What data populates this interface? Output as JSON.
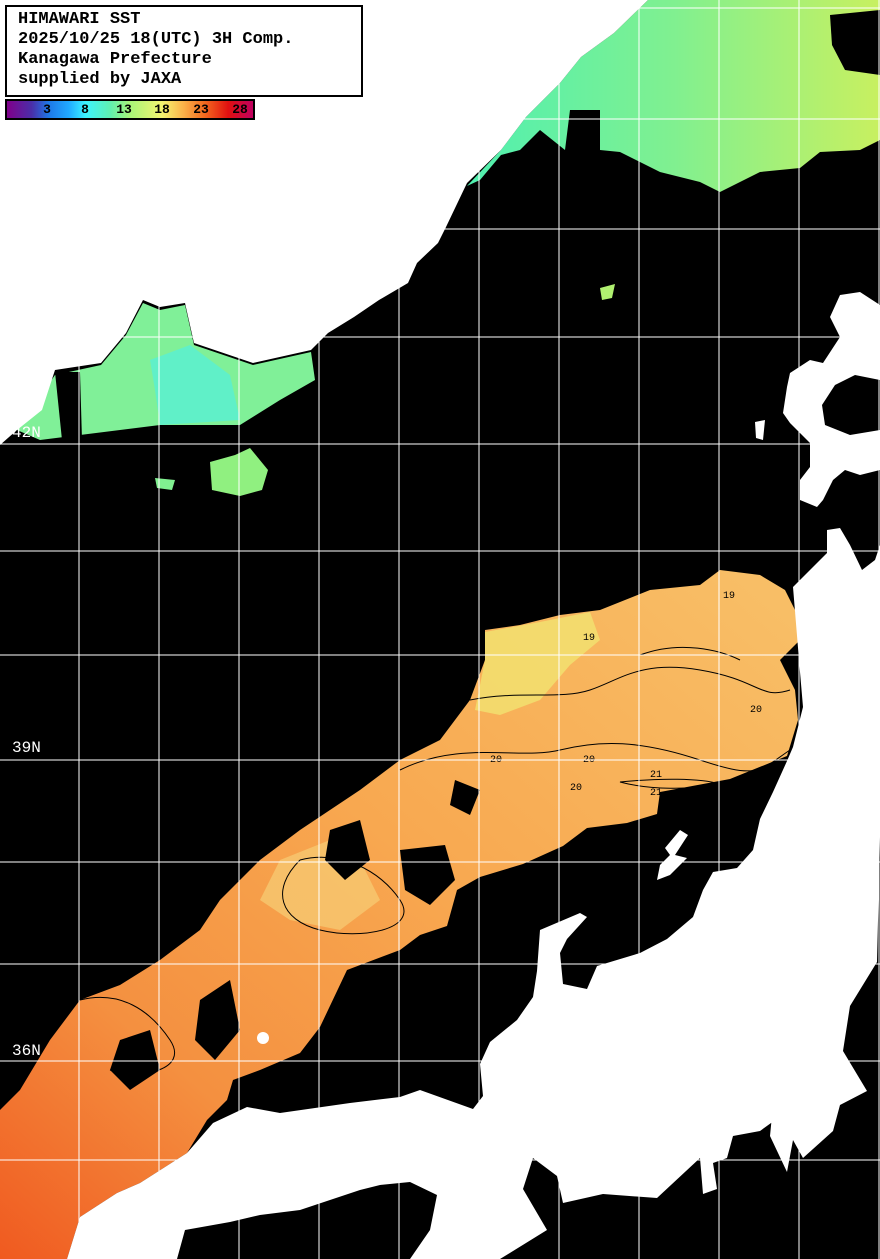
{
  "header": {
    "lines": [
      "HIMAWARI SST",
      "2025/10/25 18(UTC) 3H Comp.",
      "Kanagawa Prefecture",
      "supplied by JAXA"
    ]
  },
  "colorbar": {
    "unit_values": [
      "3",
      "8",
      "13",
      "18",
      "23",
      "28"
    ],
    "colors": [
      "#80008a",
      "#1e78e8",
      "#3cf4ff",
      "#a8f478",
      "#f4f470",
      "#fbb048",
      "#f46c20",
      "#e01010",
      "#c00060"
    ]
  },
  "latitude_labels": [
    "42N",
    "39N",
    "36N"
  ],
  "contour_labels": [
    "19",
    "19",
    "20",
    "20",
    "20",
    "21",
    "21",
    "20",
    "19"
  ],
  "colors": {
    "land": "#ffffff",
    "no_data": "#000000",
    "grid": "#ffffff",
    "sst_cold": "#1e78e8",
    "sst_cool": "#60f0b0",
    "sst_mild": "#f0e878",
    "sst_warm": "#f8b060",
    "sst_hot": "#f06828"
  }
}
